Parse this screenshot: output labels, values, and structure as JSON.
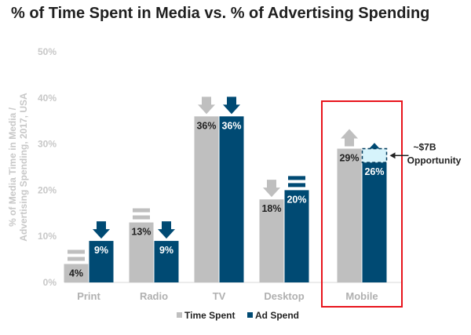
{
  "title": "% of Time Spent in Media vs. % of Advertising Spending",
  "chart_data": {
    "type": "bar",
    "title": "% of Time Spent in Media vs. % of Advertising Spending",
    "ylabel": "% of Media Time in Media / Advertising Spending, 2017, USA",
    "xlabel": "",
    "ylim": [
      0,
      50
    ],
    "yticks": [
      "0%",
      "10%",
      "20%",
      "30%",
      "40%",
      "50%"
    ],
    "grid": false,
    "legend_position": "bottom",
    "categories": [
      "Print",
      "Radio",
      "TV",
      "Desktop",
      "Mobile"
    ],
    "series": [
      {
        "name": "Time Spent",
        "color": "#bfbfbf",
        "values": [
          4,
          13,
          36,
          18,
          29
        ],
        "labels": [
          "4%",
          "13%",
          "36%",
          "18%",
          "29%"
        ]
      },
      {
        "name": "Ad Spend",
        "color": "#004a73",
        "values": [
          9,
          9,
          36,
          20,
          26
        ],
        "labels": [
          "9%",
          "9%",
          "36%",
          "20%",
          "26%"
        ]
      }
    ],
    "trend_icons": {
      "Time Spent": [
        "equal",
        "equal",
        "down",
        "down",
        "up"
      ],
      "Ad Spend": [
        "down",
        "down",
        "down",
        "equal",
        "up"
      ]
    },
    "highlight_category": "Mobile",
    "highlight_color": "#e8141c",
    "gap_fill_color": "#d6f3fb",
    "annotation": {
      "line1": "~$7B",
      "line2": "Opportunity"
    }
  }
}
